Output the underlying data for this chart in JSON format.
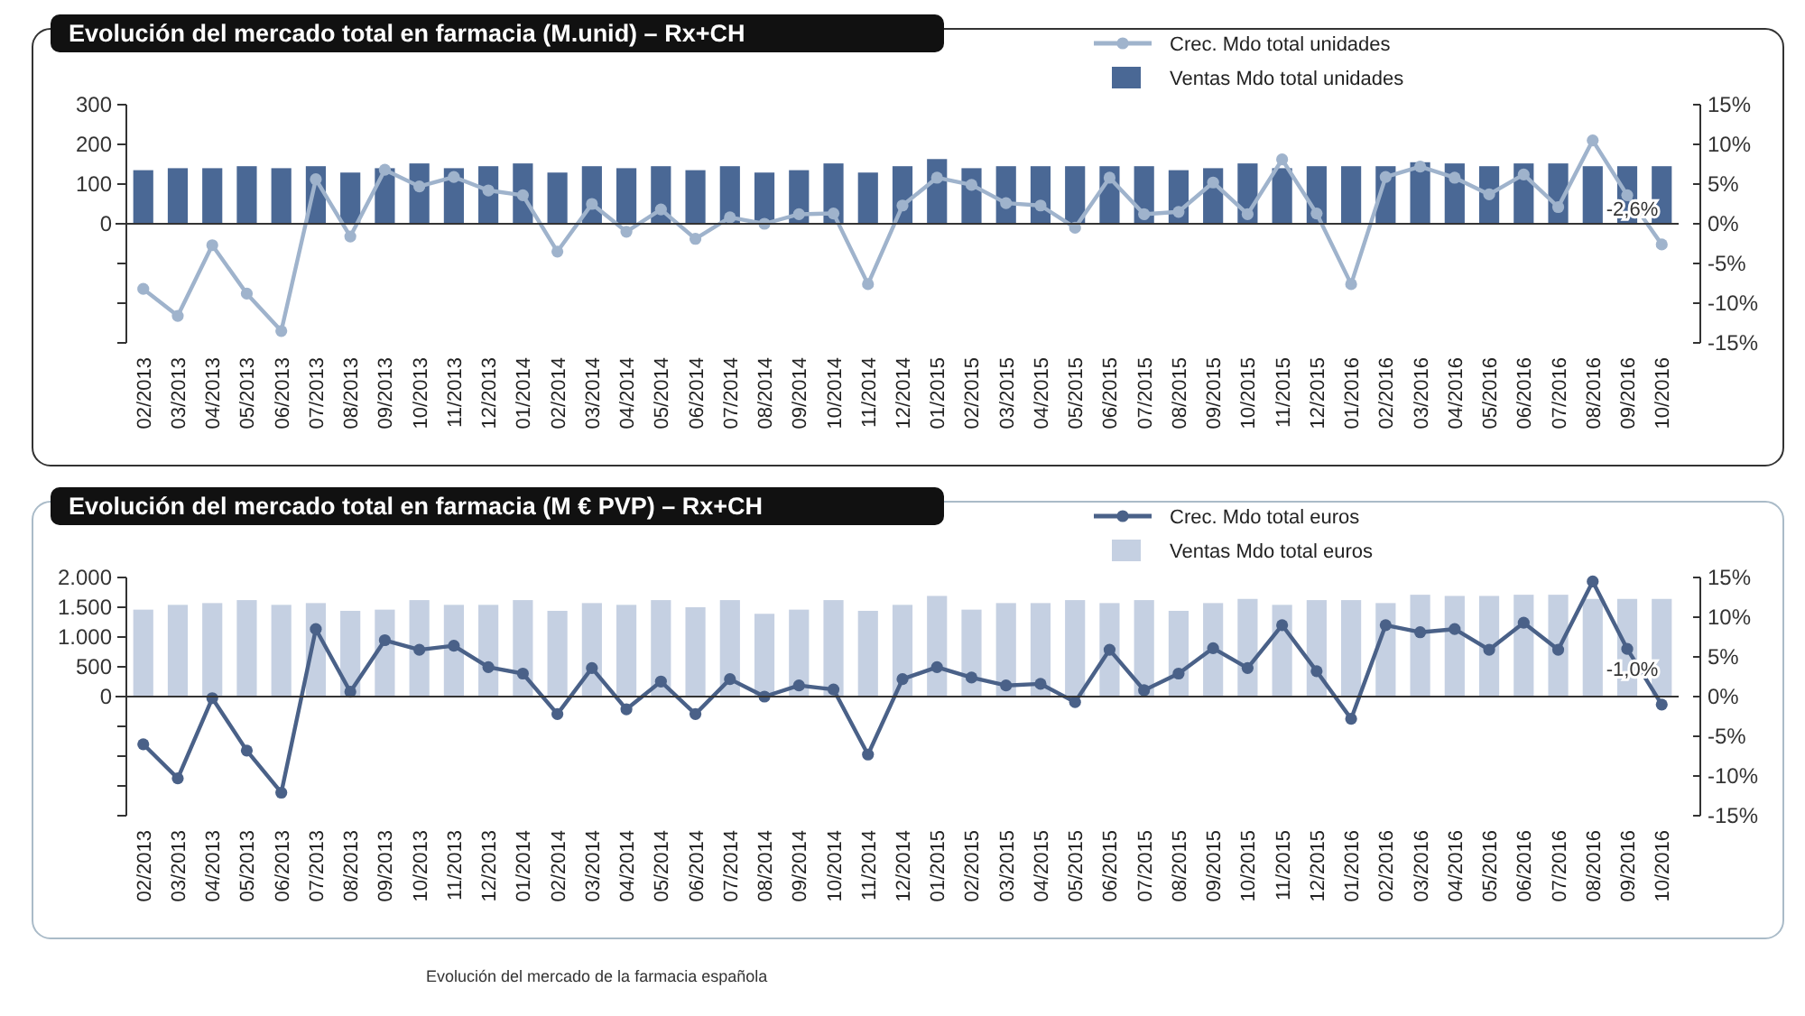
{
  "chart_data": [
    {
      "type": "bar",
      "title": "Evolución del mercado total en farmacia (M.unid) – Rx+CH",
      "categories": [
        "02/2013",
        "03/2013",
        "04/2013",
        "05/2013",
        "06/2013",
        "07/2013",
        "08/2013",
        "09/2013",
        "10/2013",
        "11/2013",
        "12/2013",
        "01/2014",
        "02/2014",
        "03/2014",
        "04/2014",
        "05/2014",
        "06/2014",
        "07/2014",
        "08/2014",
        "09/2014",
        "10/2014",
        "11/2014",
        "12/2014",
        "01/2015",
        "02/2015",
        "03/2015",
        "04/2015",
        "05/2015",
        "06/2015",
        "07/2015",
        "08/2015",
        "09/2015",
        "10/2015",
        "11/2015",
        "12/2015",
        "01/2016",
        "02/2016",
        "03/2016",
        "04/2016",
        "05/2016",
        "06/2016",
        "07/2016",
        "08/2016",
        "09/2016",
        "10/2016"
      ],
      "series": [
        {
          "name": "Crec. Mdo total unidades",
          "type": "line",
          "axis": "y2",
          "color": "#9fb3cc",
          "values": [
            -8.2,
            -11.6,
            -2.7,
            -8.8,
            -13.5,
            5.6,
            -1.6,
            6.8,
            4.7,
            5.9,
            4.2,
            3.6,
            -3.5,
            2.5,
            -1.0,
            1.8,
            -1.9,
            0.8,
            0,
            1.2,
            1.3,
            -7.6,
            2.3,
            5.8,
            4.9,
            2.6,
            2.3,
            -0.5,
            5.8,
            1.2,
            1.5,
            5.2,
            1.2,
            8.1,
            1.3,
            -7.6,
            5.9,
            7.2,
            5.8,
            3.7,
            6.2,
            2.1,
            10.5,
            3.6,
            -2.6
          ],
          "value_labels": [
            null,
            null,
            null,
            null,
            null,
            null,
            null,
            null,
            null,
            null,
            null,
            null,
            null,
            null,
            null,
            null,
            null,
            null,
            null,
            null,
            null,
            null,
            null,
            null,
            null,
            null,
            null,
            null,
            null,
            null,
            null,
            null,
            null,
            null,
            null,
            null,
            null,
            null,
            null,
            null,
            null,
            null,
            null,
            null,
            "-2,6%"
          ]
        },
        {
          "name": "Ventas Mdo total unidades",
          "color": "#4a6895",
          "values": [
            135,
            140,
            140,
            145,
            140,
            145,
            129,
            140,
            152,
            140,
            145,
            152,
            129,
            145,
            140,
            145,
            135,
            145,
            129,
            135,
            152,
            129,
            145,
            163,
            140,
            145,
            145,
            145,
            145,
            145,
            135,
            140,
            152,
            140,
            145,
            145,
            145,
            155,
            152,
            145,
            152,
            152,
            145,
            145,
            145
          ]
        }
      ],
      "ylim": [
        -300,
        300
      ],
      "yticks": [
        {
          "value": -300,
          "label": null
        },
        {
          "value": -200,
          "label": null
        },
        {
          "value": -100,
          "label": null
        },
        0,
        100,
        200,
        300
      ],
      "y2lim": [
        -15,
        15
      ],
      "y2ticks": [
        {
          "value": -15,
          "label": "-15%"
        },
        {
          "value": -10,
          "label": "-10%"
        },
        {
          "value": -5,
          "label": "-5%"
        },
        {
          "value": 0,
          "label": "0%"
        },
        {
          "value": 5,
          "label": "5%"
        },
        {
          "value": 10,
          "label": "10%"
        },
        {
          "value": 15,
          "label": "15%"
        }
      ],
      "legend": "top",
      "marker": "circle"
    },
    {
      "type": "bar",
      "title": "Evolución del mercado total en farmacia (M € PVP) – Rx+CH",
      "categories": [
        "02/2013",
        "03/2013",
        "04/2013",
        "05/2013",
        "06/2013",
        "07/2013",
        "08/2013",
        "09/2013",
        "10/2013",
        "11/2013",
        "12/2013",
        "01/2014",
        "02/2014",
        "03/2014",
        "04/2014",
        "05/2014",
        "06/2014",
        "07/2014",
        "08/2014",
        "09/2014",
        "10/2014",
        "11/2014",
        "12/2014",
        "01/2015",
        "02/2015",
        "03/2015",
        "04/2015",
        "05/2015",
        "06/2015",
        "07/2015",
        "08/2015",
        "09/2015",
        "10/2015",
        "11/2015",
        "12/2015",
        "01/2016",
        "02/2016",
        "03/2016",
        "04/2016",
        "05/2016",
        "06/2016",
        "07/2016",
        "08/2016",
        "09/2016",
        "10/2016"
      ],
      "series": [
        {
          "name": "Crec. Mdo total euros",
          "type": "line",
          "axis": "y2",
          "color": "#4a6188",
          "values": [
            -6.0,
            -10.3,
            -0.2,
            -6.8,
            -12.1,
            8.5,
            0.6,
            7.1,
            5.9,
            6.4,
            3.7,
            2.9,
            -2.2,
            3.6,
            -1.6,
            1.9,
            -2.2,
            2.2,
            0,
            1.4,
            0.9,
            -7.3,
            2.2,
            3.7,
            2.4,
            1.4,
            1.6,
            -0.7,
            5.9,
            0.8,
            2.9,
            6.1,
            3.6,
            9.0,
            3.2,
            -2.8,
            9.0,
            8.1,
            8.5,
            5.9,
            9.3,
            5.9,
            14.5,
            6.0,
            -1.0
          ],
          "value_labels": [
            null,
            null,
            null,
            null,
            null,
            null,
            null,
            null,
            null,
            null,
            null,
            null,
            null,
            null,
            null,
            null,
            null,
            null,
            null,
            null,
            null,
            null,
            null,
            null,
            null,
            null,
            null,
            null,
            null,
            null,
            null,
            null,
            null,
            null,
            null,
            null,
            null,
            null,
            null,
            null,
            null,
            null,
            null,
            null,
            "-1,0%"
          ]
        },
        {
          "name": "Ventas Mdo total euros",
          "color": "#c5d0e2",
          "values": [
            1460,
            1540,
            1570,
            1620,
            1540,
            1570,
            1440,
            1460,
            1620,
            1540,
            1540,
            1620,
            1440,
            1570,
            1540,
            1620,
            1500,
            1620,
            1390,
            1460,
            1620,
            1440,
            1540,
            1690,
            1460,
            1570,
            1570,
            1620,
            1570,
            1620,
            1440,
            1570,
            1640,
            1540,
            1620,
            1620,
            1570,
            1710,
            1690,
            1690,
            1710,
            1710,
            1640,
            1640,
            1640
          ]
        }
      ],
      "ylim": [
        -2000,
        2000
      ],
      "yticks": [
        {
          "value": -2000,
          "label": null
        },
        {
          "value": -1500,
          "label": null
        },
        {
          "value": -1000,
          "label": null
        },
        {
          "value": -500,
          "label": null
        },
        0,
        500,
        {
          "value": 1000,
          "label": "1.000"
        },
        {
          "value": 1500,
          "label": "1.500"
        },
        {
          "value": 2000,
          "label": "2.000"
        }
      ],
      "y2lim": [
        -15,
        15
      ],
      "y2ticks": [
        {
          "value": -15,
          "label": "-15%"
        },
        {
          "value": -10,
          "label": "-10%"
        },
        {
          "value": -5,
          "label": "-5%"
        },
        {
          "value": 0,
          "label": "0%"
        },
        {
          "value": 5,
          "label": "5%"
        },
        {
          "value": 10,
          "label": "10%"
        },
        {
          "value": 15,
          "label": "15%"
        }
      ],
      "legend": "top",
      "marker": "circle",
      "annotations": [
        "Evolución del mercado de la farmacia española"
      ]
    }
  ]
}
